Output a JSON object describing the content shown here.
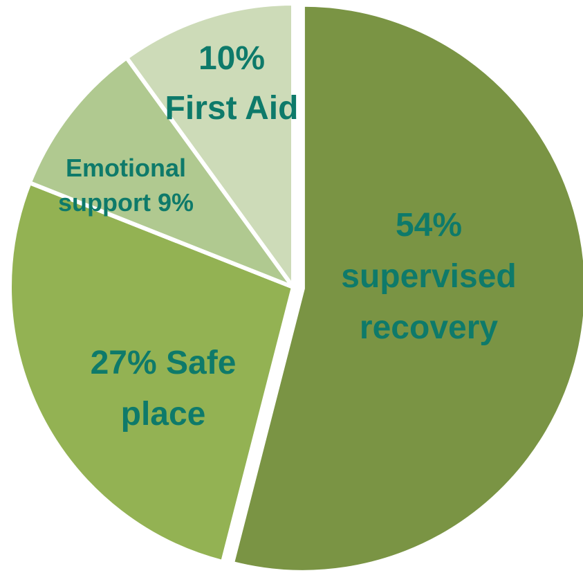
{
  "chart_data": {
    "type": "pie",
    "title": "",
    "slices": [
      {
        "category": "supervised recovery",
        "value": 54,
        "color": "#7a9444",
        "label_lines": [
          "54%",
          "supervised",
          "recovery"
        ]
      },
      {
        "category": "Safe place",
        "value": 27,
        "color": "#93b253",
        "label_lines": [
          "27% Safe",
          "place"
        ]
      },
      {
        "category": "Emotional support",
        "value": 9,
        "color": "#b0c990",
        "label_lines": [
          "Emotional",
          "support 9%"
        ]
      },
      {
        "category": "First Aid",
        "value": 10,
        "color": "#cddbb8",
        "label_lines": [
          "10%",
          "First Aid"
        ]
      }
    ],
    "label_color": "#0e7a6a",
    "start_angle_deg": 0,
    "direction": "clockwise",
    "exploded_category": "supervised recovery",
    "legend": "none"
  }
}
